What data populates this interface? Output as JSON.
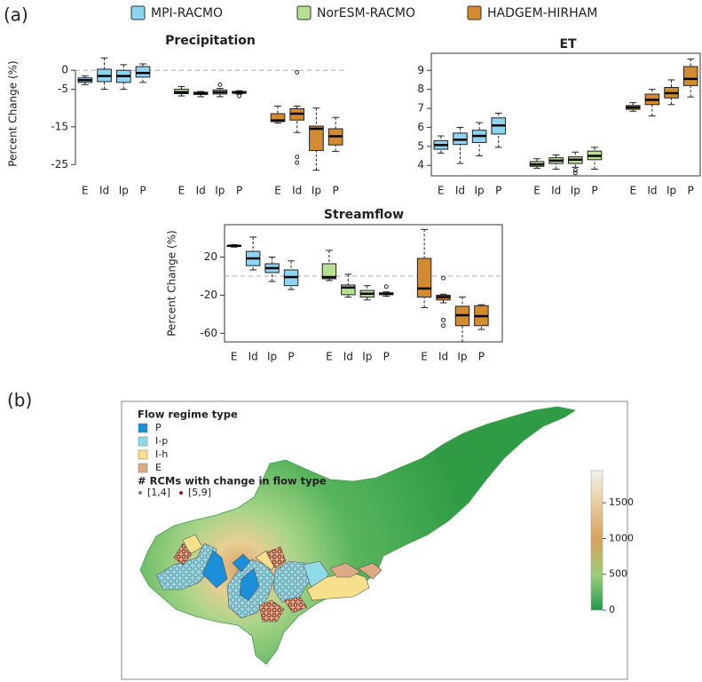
{
  "panel_labels": [
    "(a)",
    "(b)"
  ],
  "chart_data": [
    {
      "type": "box",
      "title": "Precipitation",
      "ylabel": "Percent Change (%)",
      "categories": [
        "E",
        "Id",
        "Ip",
        "P"
      ],
      "series": [
        {
          "name": "MPI-RACMO",
          "color": "#8ed3f2",
          "values": [
            [
              -3.8,
              -3.2,
              -2.6,
              -2.0,
              -1.5
            ],
            [
              -5,
              -3,
              -1.5,
              0.3,
              3.3
            ],
            [
              -5,
              -3.2,
              -1.5,
              0.0,
              1.5
            ],
            [
              -3.2,
              -1.8,
              -0.7,
              1,
              1.7
            ]
          ],
          "outliers": [
            [],
            [],
            [],
            []
          ]
        },
        {
          "name": "NorESM-RACMO",
          "color": "#b7e093",
          "values": [
            [
              -6.8,
              -6.2,
              -5.8,
              -5.0,
              -4.3
            ],
            [
              -7,
              -6.4,
              -6.1,
              -5.8,
              -5.6
            ],
            [
              -7,
              -6.3,
              -5.8,
              -5.2,
              -4.8
            ],
            [
              -6.3,
              -6.1,
              -5.9,
              -5.6,
              -5.4
            ]
          ],
          "outliers": [
            [],
            [],
            [
              -3.8
            ],
            [
              -6.8
            ]
          ]
        },
        {
          "name": "HADGEM-HIRHAM",
          "color": "#d48a2e",
          "values": [
            [
              -14,
              -13.6,
              -13.3,
              -11.5,
              -9.5
            ],
            [
              -16.5,
              -13.2,
              -11.5,
              -10.2,
              -9.5
            ],
            [
              -26.5,
              -21.3,
              -15.5,
              -14.8,
              -10
            ],
            [
              -21.5,
              -19.8,
              -17.5,
              -15.5,
              -12.5
            ]
          ],
          "outliers": [
            [],
            [
              -0.5,
              -23,
              -24.5
            ],
            [],
            []
          ]
        }
      ],
      "ylim": [
        -28,
        5
      ],
      "yticks": [
        0,
        -5,
        -15,
        -25
      ],
      "hline": 0,
      "frame": false
    },
    {
      "type": "box",
      "title": "ET",
      "categories": [
        "E",
        "Id",
        "Ip",
        "P"
      ],
      "series": [
        {
          "name": "MPI-RACMO",
          "color": "#8ed3f2",
          "values": [
            [
              4.65,
              4.85,
              5.07,
              5.3,
              5.55
            ],
            [
              4.1,
              5.1,
              5.35,
              5.7,
              6.0
            ],
            [
              4.5,
              5.2,
              5.55,
              5.85,
              6.25
            ],
            [
              4.95,
              5.65,
              6.1,
              6.5,
              6.75
            ]
          ],
          "outliers": [
            [],
            [],
            [],
            []
          ]
        },
        {
          "name": "NorESM-RACMO",
          "color": "#b7e093",
          "values": [
            [
              3.85,
              3.95,
              4.05,
              4.2,
              4.35
            ],
            [
              3.8,
              4.1,
              4.25,
              4.4,
              4.55
            ],
            [
              3.9,
              4.1,
              4.3,
              4.45,
              4.7
            ],
            [
              3.8,
              4.3,
              4.5,
              4.75,
              4.95
            ]
          ],
          "outliers": [
            [],
            [],
            [
              3.6,
              3.75
            ],
            []
          ]
        },
        {
          "name": "HADGEM-HIRHAM",
          "color": "#d48a2e",
          "values": [
            [
              6.85,
              6.95,
              7.05,
              7.15,
              7.3
            ],
            [
              6.6,
              7.2,
              7.45,
              7.75,
              8.0
            ],
            [
              7.2,
              7.55,
              7.8,
              8.1,
              8.5
            ],
            [
              7.6,
              8.2,
              8.55,
              9.2,
              9.6
            ]
          ],
          "outliers": [
            [],
            [],
            [],
            []
          ]
        }
      ],
      "ylim": [
        3.45,
        9.9
      ],
      "yticks": [
        4,
        5,
        6,
        7,
        8,
        9
      ],
      "frame": true
    },
    {
      "type": "box",
      "title": "Streamflow",
      "ylabel": "Percent Change (%)",
      "categories": [
        "E",
        "Id",
        "Ip",
        "P"
      ],
      "series": [
        {
          "name": "MPI-RACMO",
          "color": "#8ed3f2",
          "values": [
            [
              30.5,
              31.2,
              31.8,
              32.3,
              33
            ],
            [
              6.5,
              11,
              18.6,
              26,
              41
            ],
            [
              -5.6,
              3.7,
              8.4,
              13,
              20
            ],
            [
              -14,
              -10,
              -1,
              6.5,
              16
            ]
          ],
          "outliers": [
            [],
            [],
            [],
            []
          ]
        },
        {
          "name": "NorESM-RACMO",
          "color": "#b7e093",
          "values": [
            [
              -4.6,
              -2.8,
              -1,
              13,
              27
            ],
            [
              -22,
              -19.5,
              -12,
              -9.3,
              1.9
            ],
            [
              -25,
              -22,
              -18.5,
              -15,
              -10
            ],
            [
              -21,
              -19.5,
              -18.5,
              -17.5,
              -16.5
            ]
          ],
          "outliers": [
            [],
            [],
            [],
            [
              -11
            ]
          ]
        },
        {
          "name": "HADGEM-HIRHAM",
          "color": "#d48a2e",
          "values": [
            [
              -33,
              -22,
              -13,
              18.6,
              49
            ],
            [
              -28,
              -25,
              -22,
              -20,
              -19
            ],
            [
              -69,
              -52,
              -41,
              -31.6,
              -22
            ],
            [
              -56,
              -52,
              -42,
              -31,
              -30
            ]
          ],
          "outliers": [
            [],
            [
              -2,
              -46,
              -52
            ],
            [],
            []
          ]
        }
      ],
      "ylim": [
        -69,
        54
      ],
      "yticks": [
        20,
        -20,
        -60
      ],
      "hline": 0,
      "frame": true
    }
  ],
  "map": {
    "legend_title": "Flow regime type",
    "regimes": [
      {
        "label": "P",
        "color": "#1a8fd8"
      },
      {
        "label": "I-p",
        "color": "#8edbe9"
      },
      {
        "label": "I-h",
        "color": "#f6e08c"
      },
      {
        "label": "E",
        "color": "#dcab86"
      }
    ],
    "change_title": "# RCMs with change in flow type",
    "change_classes": [
      {
        "label": "[1,4]",
        "color": "#7a7a7a"
      },
      {
        "label": "[5,9]",
        "color": "#8b1a1a"
      }
    ],
    "colorbar": {
      "lim": [
        0,
        1950
      ],
      "ticks": [
        0,
        500,
        1000,
        1500
      ]
    }
  }
}
